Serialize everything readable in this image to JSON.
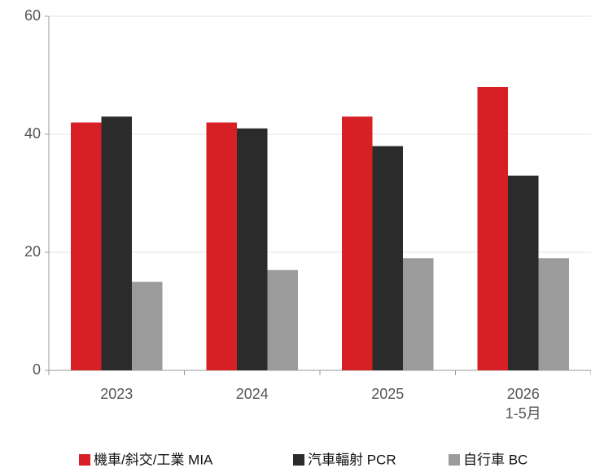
{
  "chart_data": {
    "type": "bar",
    "categories": [
      "2023",
      "2024",
      "2025",
      "2026\n1-5月"
    ],
    "series": [
      {
        "name": "機車/斜交/工業 MIA",
        "color": "#d71f26",
        "values": [
          42,
          42,
          43,
          48
        ]
      },
      {
        "name": "汽車輻射 PCR",
        "color": "#2b2b2b",
        "values": [
          43,
          41,
          38,
          33
        ]
      },
      {
        "name": "自行車 BC",
        "color": "#9b9b9b",
        "values": [
          15,
          17,
          19,
          19
        ]
      }
    ],
    "ylim": [
      0,
      60
    ],
    "yticks": [
      0,
      20,
      40,
      60
    ],
    "grid": true,
    "legend": "bottom"
  }
}
